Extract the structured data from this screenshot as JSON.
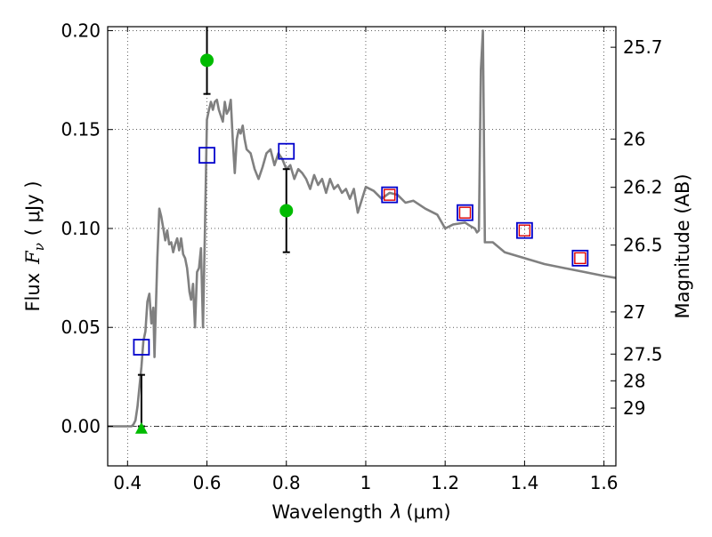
{
  "chart_data": {
    "type": "line",
    "xlabel_text": "Wavelength",
    "xlabel_symbol": "λ",
    "xlabel_unit": "(μm)",
    "ylabel_text": "Flux",
    "ylabel_symbol": "F",
    "ylabel_sub": "ν",
    "ylabel_unit": "( μJy )",
    "y2label": "Magnitude (AB)",
    "xlim": [
      0.35,
      1.63
    ],
    "ylim": [
      -0.02,
      0.202
    ],
    "grid": true,
    "x_ticks": [
      {
        "value": 0.4,
        "label": "0.4"
      },
      {
        "value": 0.6,
        "label": "0.6"
      },
      {
        "value": 0.8,
        "label": "0.8"
      },
      {
        "value": 1.0,
        "label": "1"
      },
      {
        "value": 1.2,
        "label": "1.2"
      },
      {
        "value": 1.4,
        "label": "1.4"
      },
      {
        "value": 1.6,
        "label": "1.6"
      }
    ],
    "y_ticks": [
      {
        "value": 0.0,
        "label": "0.00"
      },
      {
        "value": 0.05,
        "label": "0.05"
      },
      {
        "value": 0.1,
        "label": "0.10"
      },
      {
        "value": 0.15,
        "label": "0.15"
      },
      {
        "value": 0.2,
        "label": "0.20"
      }
    ],
    "y2_ticks": [
      {
        "label": "25.7",
        "flux": 0.1916
      },
      {
        "label": "26",
        "flux": 0.1452
      },
      {
        "label": "26.2",
        "flux": 0.1208
      },
      {
        "label": "26.5",
        "flux": 0.0916
      },
      {
        "label": "27",
        "flux": 0.0578
      },
      {
        "label": "27.5",
        "flux": 0.0365
      },
      {
        "label": "28",
        "flux": 0.023
      },
      {
        "label": "29",
        "flux": 0.0092
      }
    ],
    "zero_line": 0.0,
    "series": [
      {
        "kind": "model_sed",
        "color": "#808080",
        "x": [
          0.35,
          0.41,
          0.415,
          0.42,
          0.425,
          0.43,
          0.435,
          0.44,
          0.445,
          0.45,
          0.455,
          0.46,
          0.465,
          0.468,
          0.47,
          0.475,
          0.48,
          0.485,
          0.49,
          0.495,
          0.5,
          0.505,
          0.51,
          0.515,
          0.52,
          0.525,
          0.53,
          0.535,
          0.54,
          0.545,
          0.55,
          0.553,
          0.556,
          0.56,
          0.565,
          0.57,
          0.575,
          0.58,
          0.585,
          0.59,
          0.595,
          0.6,
          0.605,
          0.61,
          0.615,
          0.62,
          0.625,
          0.63,
          0.635,
          0.64,
          0.645,
          0.65,
          0.655,
          0.66,
          0.665,
          0.67,
          0.675,
          0.68,
          0.685,
          0.69,
          0.695,
          0.7,
          0.71,
          0.72,
          0.73,
          0.74,
          0.75,
          0.76,
          0.77,
          0.78,
          0.79,
          0.8,
          0.81,
          0.82,
          0.83,
          0.84,
          0.85,
          0.86,
          0.87,
          0.88,
          0.89,
          0.9,
          0.91,
          0.92,
          0.93,
          0.94,
          0.95,
          0.96,
          0.97,
          0.98,
          1.0,
          1.02,
          1.04,
          1.06,
          1.08,
          1.1,
          1.12,
          1.15,
          1.18,
          1.2,
          1.22,
          1.25,
          1.265,
          1.275,
          1.28,
          1.285,
          1.29,
          1.295,
          1.3,
          1.32,
          1.35,
          1.4,
          1.45,
          1.5,
          1.55,
          1.6,
          1.63
        ],
        "y": [
          0.0,
          0.0,
          0.001,
          0.003,
          0.01,
          0.02,
          0.03,
          0.043,
          0.048,
          0.063,
          0.067,
          0.052,
          0.06,
          0.035,
          0.05,
          0.085,
          0.11,
          0.106,
          0.1,
          0.094,
          0.099,
          0.092,
          0.093,
          0.088,
          0.092,
          0.095,
          0.089,
          0.095,
          0.087,
          0.085,
          0.08,
          0.074,
          0.068,
          0.064,
          0.072,
          0.05,
          0.078,
          0.08,
          0.09,
          0.05,
          0.1,
          0.155,
          0.16,
          0.164,
          0.16,
          0.164,
          0.165,
          0.16,
          0.157,
          0.154,
          0.164,
          0.158,
          0.16,
          0.165,
          0.145,
          0.128,
          0.145,
          0.15,
          0.148,
          0.152,
          0.145,
          0.14,
          0.138,
          0.13,
          0.125,
          0.131,
          0.138,
          0.14,
          0.132,
          0.138,
          0.135,
          0.13,
          0.132,
          0.125,
          0.13,
          0.128,
          0.125,
          0.12,
          0.127,
          0.122,
          0.125,
          0.118,
          0.125,
          0.12,
          0.122,
          0.118,
          0.12,
          0.115,
          0.12,
          0.108,
          0.121,
          0.119,
          0.115,
          0.118,
          0.117,
          0.113,
          0.114,
          0.11,
          0.107,
          0.1,
          0.102,
          0.103,
          0.101,
          0.1,
          0.098,
          0.099,
          0.18,
          0.2,
          0.093,
          0.093,
          0.088,
          0.085,
          0.082,
          0.08,
          0.078,
          0.076,
          0.075
        ]
      },
      {
        "kind": "observed_detections",
        "color": "#00bb00",
        "points": [
          {
            "x": 0.6,
            "y": 0.185,
            "err_low": 0.168,
            "err_high": 0.203
          },
          {
            "x": 0.8,
            "y": 0.109,
            "err_low": 0.088,
            "err_high": 0.13
          }
        ]
      },
      {
        "kind": "observed_upper_limit",
        "color": "#00bb00",
        "points": [
          {
            "x": 0.435,
            "y": -0.001,
            "err_low": 0.0,
            "err_high": 0.026
          }
        ]
      },
      {
        "kind": "model_photometry_blue",
        "color": "#0000cc",
        "points": [
          {
            "x": 0.435,
            "y": 0.04
          },
          {
            "x": 0.6,
            "y": 0.137
          },
          {
            "x": 0.8,
            "y": 0.139
          },
          {
            "x": 1.06,
            "y": 0.117
          },
          {
            "x": 1.25,
            "y": 0.108
          },
          {
            "x": 1.4,
            "y": 0.099
          },
          {
            "x": 1.54,
            "y": 0.085
          }
        ]
      },
      {
        "kind": "model_photometry_red",
        "color": "#dd0000",
        "points": [
          {
            "x": 1.06,
            "y": 0.117
          },
          {
            "x": 1.25,
            "y": 0.108
          },
          {
            "x": 1.4,
            "y": 0.099
          },
          {
            "x": 1.54,
            "y": 0.085
          }
        ]
      }
    ]
  }
}
